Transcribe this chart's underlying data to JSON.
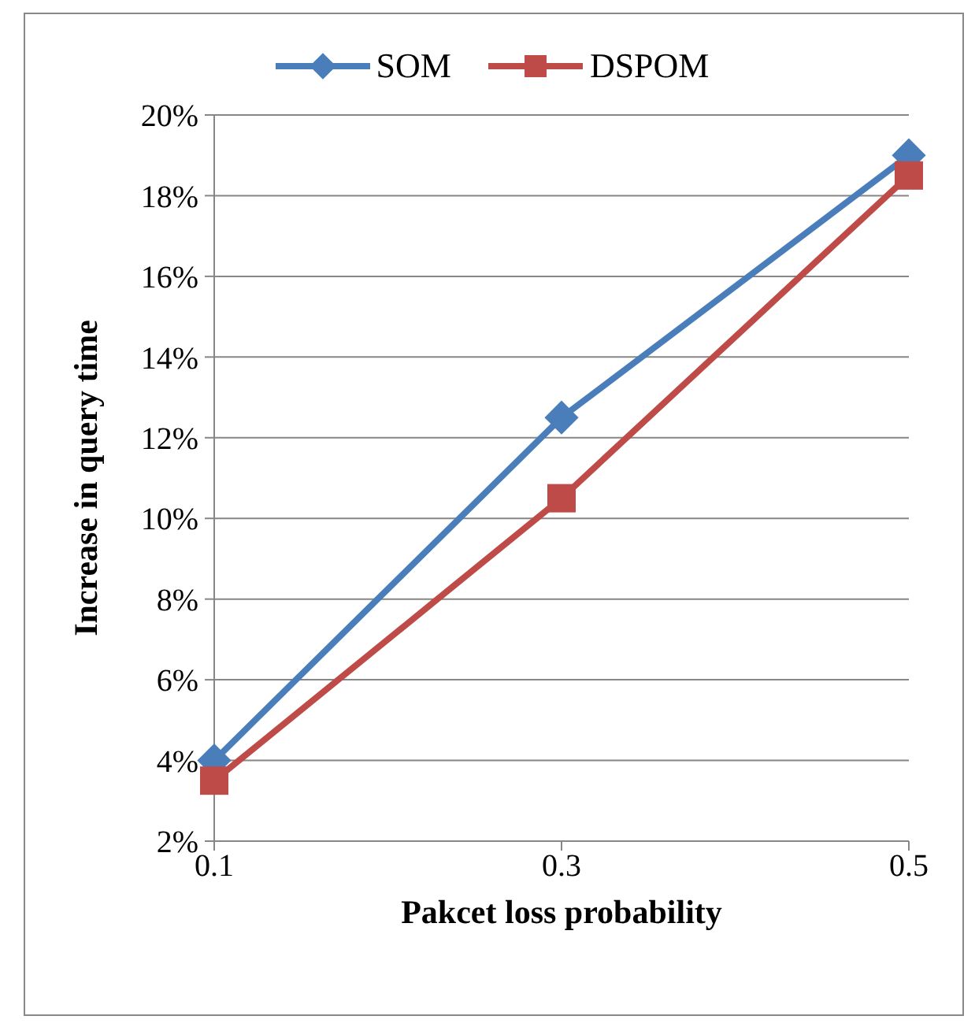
{
  "chart_data": {
    "type": "line",
    "xlabel": "Pakcet loss probability",
    "ylabel": "Increase in query time",
    "categories": [
      "0.1",
      "0.3",
      "0.5"
    ],
    "series": [
      {
        "name": "SOM",
        "color": "#4a7ebb",
        "marker": "diamond",
        "values": [
          4,
          12.5,
          19
        ]
      },
      {
        "name": "DSPOM",
        "color": "#be4b48",
        "marker": "square",
        "values": [
          3.5,
          10.5,
          18.5
        ]
      }
    ],
    "ylim": [
      2,
      20
    ],
    "yticks": [
      {
        "value": 2,
        "label": "2%"
      },
      {
        "value": 4,
        "label": "4%"
      },
      {
        "value": 6,
        "label": "6%"
      },
      {
        "value": 8,
        "label": "8%"
      },
      {
        "value": 10,
        "label": "10%"
      },
      {
        "value": 12,
        "label": "12%"
      },
      {
        "value": 14,
        "label": "14%"
      },
      {
        "value": 16,
        "label": "16%"
      },
      {
        "value": 18,
        "label": "18%"
      },
      {
        "value": 20,
        "label": "20%"
      }
    ],
    "grid": "y",
    "legend": "top",
    "line_style": "solid"
  }
}
